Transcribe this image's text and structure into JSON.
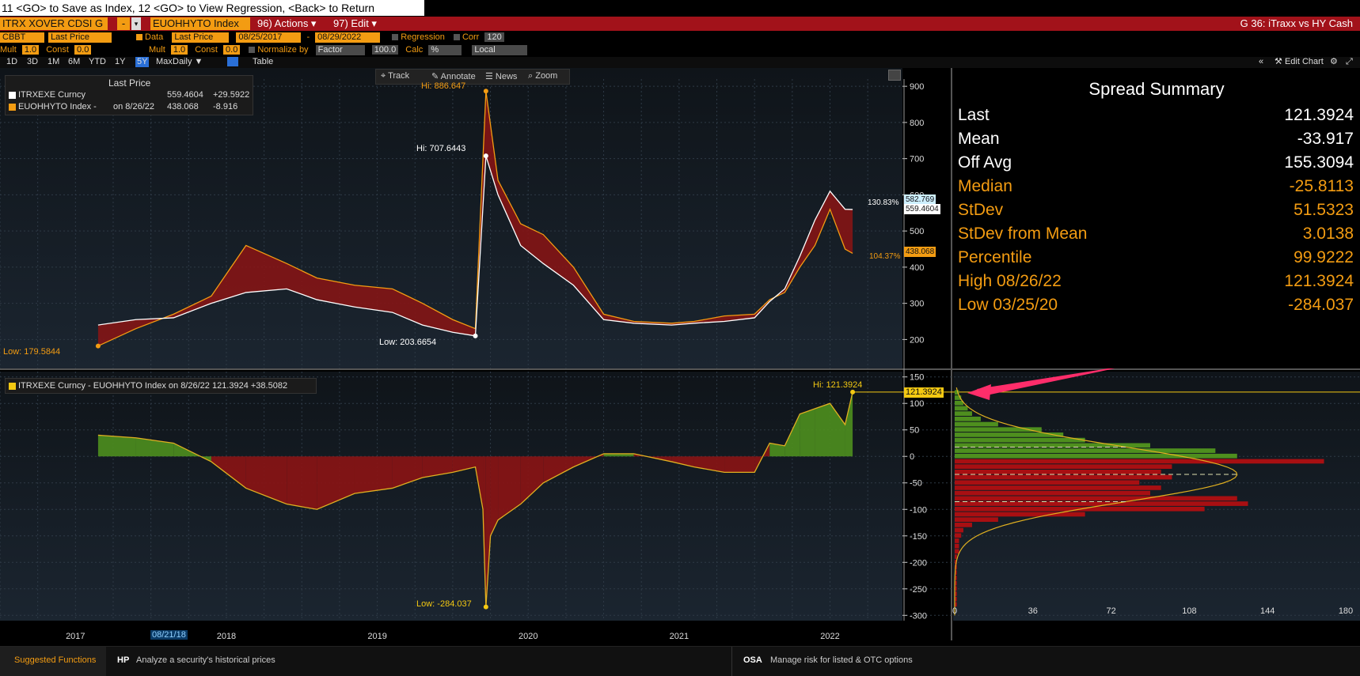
{
  "command_line": "11 <GO> to Save as Index, 12 <GO> to View Regression, <Back> to Return",
  "security_bar": {
    "sec1": "ITRX XOVER CDSI G",
    "sec1_dd": "-",
    "sec2": "EUOHHYTO Index",
    "actions": "96) Actions ▾",
    "edit": "97) Edit ▾",
    "title": "G 36: iTraxx vs HY Cash"
  },
  "row2": {
    "source": "CBBT",
    "price_field": "Last Price",
    "data_label": "Data",
    "data_field": "Last Price",
    "start_date": "08/25/2017",
    "dash": "-",
    "end_date": "08/29/2022",
    "regression": "Regression",
    "corr": "Corr",
    "corr_value": "120"
  },
  "row3": {
    "mult_label": "Mult",
    "mult_value": "1.0",
    "const_label": "Const",
    "const_value": "0.0",
    "mult2_label": "Mult",
    "mult2_value": "1.0",
    "const2_label": "Const",
    "const2_value": "0.0",
    "normalize_label": "Normalize by",
    "normalize_field": "Factor",
    "normalize_value": "100.0",
    "calc_label": "Calc",
    "calc_field": "%",
    "tz_field": "Local"
  },
  "periods": [
    "1D",
    "3D",
    "1M",
    "6M",
    "YTD",
    "1Y",
    "5Y",
    "Max"
  ],
  "period_selected": "5Y",
  "freq": "Daily ▼",
  "table_label": "Table",
  "edit_chart": "Edit Chart",
  "tools": {
    "track": "Track",
    "annotate": "Annotate",
    "news": "News",
    "zoom": "Zoom"
  },
  "upper_legend": {
    "header": "Last Price",
    "row1_name": "ITRXEXE Curncy",
    "row1_value": "559.4604",
    "row1_change": "+29.5922",
    "row2_name": "EUOHHYTO Index -",
    "row2_date": "on 8/26/22",
    "row2_value": "438.068",
    "row2_change": "-8.916"
  },
  "upper_annotations": {
    "hi_orange": "Hi: 886.647",
    "hi_white": "Hi: 707.6443",
    "low_white": "Low: 203.6654",
    "low_orange": "Low: 179.5844",
    "pct_white": "130.83%",
    "pct_orange": "104.37%",
    "tag_cyan": "582.769",
    "tag_white": "559.4604",
    "tag_orange": "438.068"
  },
  "lower_legend": {
    "text": "ITRXEXE Curncy - EUOHHYTO Index on 8/26/22 121.3924 +38.5082"
  },
  "lower_annotations": {
    "hi": "Hi: 121.3924",
    "low": "Low: -284.037",
    "tag": "121.3924"
  },
  "x_labels": [
    "2017",
    "2018",
    "2019",
    "2020",
    "2021",
    "2022"
  ],
  "crosshair_date": "08/21/18",
  "spread_summary": {
    "title": "Spread Summary",
    "rows": [
      {
        "k": "Last",
        "v": "121.3924",
        "c": "#ffffff"
      },
      {
        "k": "Mean",
        "v": "-33.917",
        "c": "#ffffff"
      },
      {
        "k": "Off Avg",
        "v": "155.3094",
        "c": "#ffffff"
      },
      {
        "k": "Median",
        "v": "-25.8113",
        "c": "#f39c12"
      },
      {
        "k": "StDev",
        "v": "51.5323",
        "c": "#f39c12"
      },
      {
        "k": "StDev from Mean",
        "v": "3.0138",
        "c": "#f39c12"
      },
      {
        "k": "Percentile",
        "v": "99.9222",
        "c": "#f39c12"
      },
      {
        "k": "High 08/26/22",
        "v": "121.3924",
        "c": "#f39c12"
      },
      {
        "k": "Low 03/25/20",
        "v": "-284.037",
        "c": "#f39c12"
      }
    ]
  },
  "bottom_bar": {
    "suggested": "Suggested Functions",
    "f1_code": "HP",
    "f1_desc": "Analyze a security's historical prices",
    "f2_code": "OSA",
    "f2_desc": "Manage risk for listed & OTC options"
  },
  "colors": {
    "orange": "#f39c12",
    "red_fill": "#8b1414",
    "green_fill": "#4e8f1e",
    "bar_red": "#a80f12"
  },
  "chart_data": [
    {
      "type": "area",
      "series": [
        {
          "name": "ITRXEXE Curncy",
          "x": [
            2017.65,
            2017.9,
            2018.15,
            2018.4,
            2018.63,
            2018.9,
            2019.1,
            2019.35,
            2019.6,
            2019.8,
            2020.0,
            2020.15,
            2020.22,
            2020.3,
            2020.45,
            2020.6,
            2020.8,
            2021.0,
            2021.2,
            2021.45,
            2021.6,
            2021.8,
            2022.0,
            2022.1,
            2022.2,
            2022.3,
            2022.4,
            2022.5,
            2022.6,
            2022.65
          ],
          "values": [
            240,
            255,
            260,
            300,
            330,
            340,
            310,
            290,
            275,
            240,
            220,
            210,
            707.6,
            600,
            460,
            410,
            350,
            255,
            245,
            240,
            245,
            250,
            260,
            305,
            340,
            430,
            530,
            610,
            560,
            559.46
          ]
        },
        {
          "name": "EUOHHYTO Index",
          "x": [
            2017.65,
            2017.9,
            2018.15,
            2018.4,
            2018.63,
            2018.9,
            2019.1,
            2019.35,
            2019.6,
            2019.8,
            2020.0,
            2020.15,
            2020.22,
            2020.3,
            2020.45,
            2020.6,
            2020.8,
            2021.0,
            2021.2,
            2021.45,
            2021.6,
            2021.8,
            2022.0,
            2022.1,
            2022.2,
            2022.3,
            2022.4,
            2022.5,
            2022.6,
            2022.65
          ],
          "values": [
            182,
            230,
            270,
            320,
            460,
            410,
            370,
            350,
            340,
            300,
            255,
            230,
            886.6,
            640,
            520,
            490,
            400,
            270,
            250,
            245,
            250,
            265,
            270,
            310,
            330,
            400,
            460,
            560,
            450,
            438.07
          ]
        }
      ],
      "ylim": [
        120,
        920
      ]
    },
    {
      "type": "area",
      "series": [
        {
          "name": "ITRXEXE Curncy - EUOHHYTO Index",
          "x": [
            2017.65,
            2017.9,
            2018.15,
            2018.4,
            2018.63,
            2018.9,
            2019.1,
            2019.35,
            2019.6,
            2019.8,
            2020.0,
            2020.15,
            2020.2,
            2020.22,
            2020.25,
            2020.3,
            2020.45,
            2020.6,
            2020.8,
            2021.0,
            2021.2,
            2021.45,
            2021.6,
            2021.8,
            2022.0,
            2022.1,
            2022.2,
            2022.3,
            2022.4,
            2022.5,
            2022.6,
            2022.65
          ],
          "values": [
            40,
            35,
            25,
            -10,
            -60,
            -90,
            -100,
            -70,
            -60,
            -40,
            -30,
            -20,
            -100,
            -284.04,
            -150,
            -120,
            -90,
            -50,
            -20,
            5,
            5,
            -10,
            -20,
            -30,
            -30,
            25,
            20,
            80,
            90,
            100,
            60,
            121.39
          ]
        }
      ],
      "ylim": [
        -310,
        160
      ]
    },
    {
      "type": "bar",
      "bins": [
        120,
        110,
        100,
        90,
        80,
        70,
        60,
        50,
        40,
        30,
        20,
        10,
        0,
        -10,
        -20,
        -30,
        -40,
        -50,
        -60,
        -70,
        -80,
        -90,
        -100,
        -110,
        -120,
        -130,
        -140,
        -150,
        -160,
        -170,
        -180,
        -190,
        -200,
        -210,
        -220,
        -230,
        -240,
        -250,
        -260,
        -270,
        -280
      ],
      "values": [
        2,
        3,
        4,
        6,
        8,
        12,
        20,
        40,
        50,
        60,
        90,
        120,
        130,
        170,
        100,
        95,
        100,
        85,
        95,
        90,
        130,
        135,
        115,
        60,
        20,
        8,
        4,
        3,
        2,
        2,
        2,
        1,
        1,
        1,
        1,
        1,
        1,
        1,
        1,
        1,
        1
      ],
      "xlim": [
        0,
        180
      ],
      "x_ticks": [
        "0",
        "36",
        "72",
        "108",
        "144",
        "180"
      ]
    }
  ]
}
